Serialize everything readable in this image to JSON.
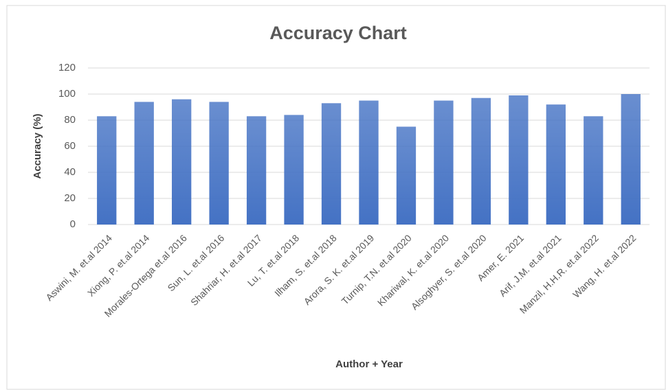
{
  "chart_data": {
    "type": "bar",
    "title": "Accuracy Chart",
    "x_label": "Author + Year",
    "y_label": "Accuracy (%)",
    "categories": [
      "Aswini, M. et.al 2014",
      "Xiong, P. et.al 2014",
      "Morales-Ortega et.al 2016",
      "Sun, L. et.al 2016",
      "Shahriar, H. et.al 2017",
      "Lu, T. et.al 2018",
      "Ilham, S. et.al 2018",
      "Arora, S. K. et.al 2019",
      "Turnip, T.N. et.al 2020",
      "Khariwal, K. et.al 2020",
      "Alsoghyer, S. et.al 2020",
      "Amer, E. 2021",
      "Arif, J.M. et.al 2021",
      "Manzil, H.H.R. et.al 2022",
      "Wang, H. et.al 2022"
    ],
    "values": [
      83,
      94,
      96,
      94,
      83,
      84,
      93,
      95,
      75,
      95,
      97,
      99,
      92,
      83,
      100
    ],
    "color": "#4472c4",
    "ylim": [
      0,
      120
    ],
    "yticks": [
      0,
      20,
      40,
      60,
      80,
      100,
      120
    ],
    "grid": true
  }
}
